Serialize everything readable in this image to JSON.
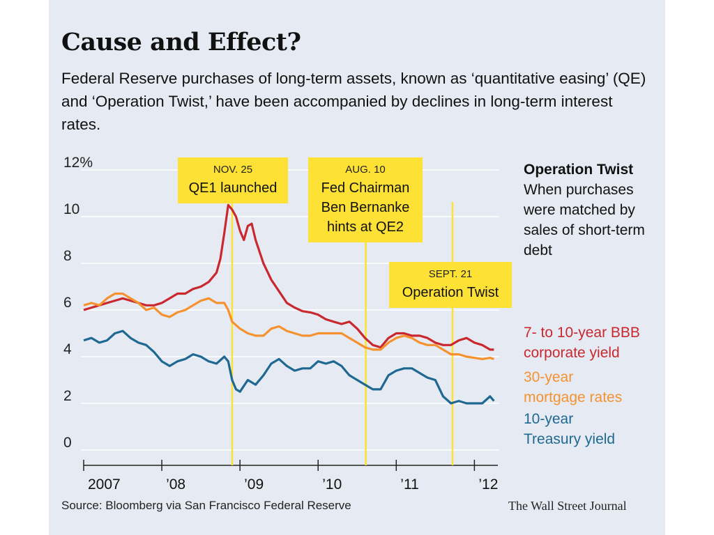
{
  "header": {
    "title": "Cause and Effect?",
    "subtitle": "Federal Reserve purchases of long-term assets, known as ‘quantitative easing’ (QE) and ‘Operation Twist,’ have been accompanied by declines in long-term interest rates."
  },
  "note": {
    "heading": "Operation Twist",
    "body": "When purchases were matched by sales of short-term debt"
  },
  "footer": {
    "source": "Source: Bloomberg via San Francisco Federal Reserve",
    "credit": "The Wall Street Journal"
  },
  "colors": {
    "background": "#e6ebf3",
    "bbb": "#c8282e",
    "mortgage": "#f5922f",
    "treasury": "#1f6891",
    "callout": "#fde134",
    "gridline": "#ffffff"
  },
  "chart_data": {
    "type": "line",
    "y_ticks": [
      {
        "value": 12,
        "label": "12%"
      },
      {
        "value": 10,
        "label": "10"
      },
      {
        "value": 8,
        "label": "8"
      },
      {
        "value": 6,
        "label": "6"
      },
      {
        "value": 4,
        "label": "4"
      },
      {
        "value": 2,
        "label": "2"
      },
      {
        "value": 0,
        "label": "0"
      }
    ],
    "ylim": [
      0,
      12
    ],
    "xlim": [
      2007.0,
      2012.3
    ],
    "x_ticks": [
      {
        "value": 2007,
        "label": "2007"
      },
      {
        "value": 2008,
        "label": "’08"
      },
      {
        "value": 2009,
        "label": "’09"
      },
      {
        "value": 2010,
        "label": "’10"
      },
      {
        "value": 2011,
        "label": "’11"
      },
      {
        "value": 2012,
        "label": "’12"
      }
    ],
    "grid": true,
    "events": [
      {
        "x": 2008.9,
        "date": "NOV. 25",
        "label": [
          "QE1 launched"
        ]
      },
      {
        "x": 2010.61,
        "date": "AUG. 10",
        "label": [
          "Fed Chairman",
          "Ben Bernanke",
          "hints at QE2"
        ]
      },
      {
        "x": 2011.72,
        "date": "SEPT. 21",
        "label": [
          "Operation Twist"
        ]
      }
    ],
    "series": [
      {
        "name": "7- to 10-year BBB corporate yield",
        "legend": [
          "7- to 10-year BBB",
          "corporate yield"
        ],
        "color": "#c8282e",
        "points": [
          [
            2007.0,
            6.0
          ],
          [
            2007.1,
            6.1
          ],
          [
            2007.2,
            6.2
          ],
          [
            2007.3,
            6.3
          ],
          [
            2007.4,
            6.4
          ],
          [
            2007.5,
            6.5
          ],
          [
            2007.6,
            6.4
          ],
          [
            2007.7,
            6.3
          ],
          [
            2007.8,
            6.2
          ],
          [
            2007.9,
            6.2
          ],
          [
            2008.0,
            6.3
          ],
          [
            2008.1,
            6.5
          ],
          [
            2008.2,
            6.7
          ],
          [
            2008.3,
            6.7
          ],
          [
            2008.4,
            6.9
          ],
          [
            2008.5,
            7.0
          ],
          [
            2008.6,
            7.2
          ],
          [
            2008.7,
            7.6
          ],
          [
            2008.75,
            8.2
          ],
          [
            2008.8,
            9.3
          ],
          [
            2008.85,
            10.5
          ],
          [
            2008.9,
            10.3
          ],
          [
            2008.95,
            10.0
          ],
          [
            2009.0,
            9.4
          ],
          [
            2009.05,
            9.0
          ],
          [
            2009.1,
            9.6
          ],
          [
            2009.15,
            9.7
          ],
          [
            2009.2,
            9.0
          ],
          [
            2009.3,
            8.0
          ],
          [
            2009.4,
            7.3
          ],
          [
            2009.5,
            6.8
          ],
          [
            2009.6,
            6.3
          ],
          [
            2009.7,
            6.1
          ],
          [
            2009.8,
            5.95
          ],
          [
            2009.9,
            5.9
          ],
          [
            2010.0,
            5.8
          ],
          [
            2010.1,
            5.6
          ],
          [
            2010.2,
            5.5
          ],
          [
            2010.3,
            5.4
          ],
          [
            2010.4,
            5.5
          ],
          [
            2010.5,
            5.2
          ],
          [
            2010.6,
            4.8
          ],
          [
            2010.7,
            4.5
          ],
          [
            2010.8,
            4.4
          ],
          [
            2010.9,
            4.8
          ],
          [
            2011.0,
            5.0
          ],
          [
            2011.1,
            5.0
          ],
          [
            2011.2,
            4.9
          ],
          [
            2011.3,
            4.9
          ],
          [
            2011.4,
            4.8
          ],
          [
            2011.5,
            4.6
          ],
          [
            2011.6,
            4.5
          ],
          [
            2011.7,
            4.5
          ],
          [
            2011.8,
            4.7
          ],
          [
            2011.9,
            4.8
          ],
          [
            2012.0,
            4.6
          ],
          [
            2012.1,
            4.5
          ],
          [
            2012.2,
            4.3
          ],
          [
            2012.25,
            4.3
          ]
        ]
      },
      {
        "name": "30-year mortgage rates",
        "legend": [
          "30-year",
          "mortgage rates"
        ],
        "color": "#f5922f",
        "points": [
          [
            2007.0,
            6.2
          ],
          [
            2007.1,
            6.3
          ],
          [
            2007.2,
            6.2
          ],
          [
            2007.3,
            6.5
          ],
          [
            2007.4,
            6.7
          ],
          [
            2007.5,
            6.7
          ],
          [
            2007.6,
            6.5
          ],
          [
            2007.7,
            6.3
          ],
          [
            2007.8,
            6.0
          ],
          [
            2007.9,
            6.1
          ],
          [
            2008.0,
            5.8
          ],
          [
            2008.1,
            5.7
          ],
          [
            2008.2,
            5.9
          ],
          [
            2008.3,
            6.0
          ],
          [
            2008.4,
            6.2
          ],
          [
            2008.5,
            6.4
          ],
          [
            2008.6,
            6.5
          ],
          [
            2008.7,
            6.3
          ],
          [
            2008.8,
            6.3
          ],
          [
            2008.85,
            6.0
          ],
          [
            2008.9,
            5.5
          ],
          [
            2009.0,
            5.2
          ],
          [
            2009.1,
            5.0
          ],
          [
            2009.2,
            4.9
          ],
          [
            2009.3,
            4.9
          ],
          [
            2009.4,
            5.2
          ],
          [
            2009.5,
            5.3
          ],
          [
            2009.6,
            5.1
          ],
          [
            2009.7,
            5.0
          ],
          [
            2009.8,
            4.9
          ],
          [
            2009.9,
            4.9
          ],
          [
            2010.0,
            5.0
          ],
          [
            2010.1,
            5.0
          ],
          [
            2010.2,
            5.0
          ],
          [
            2010.3,
            5.0
          ],
          [
            2010.4,
            4.8
          ],
          [
            2010.5,
            4.6
          ],
          [
            2010.6,
            4.4
          ],
          [
            2010.7,
            4.3
          ],
          [
            2010.8,
            4.3
          ],
          [
            2010.9,
            4.6
          ],
          [
            2011.0,
            4.8
          ],
          [
            2011.1,
            4.9
          ],
          [
            2011.2,
            4.8
          ],
          [
            2011.3,
            4.6
          ],
          [
            2011.4,
            4.5
          ],
          [
            2011.5,
            4.5
          ],
          [
            2011.6,
            4.3
          ],
          [
            2011.7,
            4.1
          ],
          [
            2011.8,
            4.1
          ],
          [
            2011.9,
            4.0
          ],
          [
            2012.0,
            3.95
          ],
          [
            2012.1,
            3.9
          ],
          [
            2012.2,
            3.95
          ],
          [
            2012.25,
            3.9
          ]
        ]
      },
      {
        "name": "10-year Treasury yield",
        "legend": [
          "10-year",
          "Treasury yield"
        ],
        "color": "#1f6891",
        "points": [
          [
            2007.0,
            4.7
          ],
          [
            2007.1,
            4.8
          ],
          [
            2007.2,
            4.6
          ],
          [
            2007.3,
            4.7
          ],
          [
            2007.4,
            5.0
          ],
          [
            2007.5,
            5.1
          ],
          [
            2007.6,
            4.8
          ],
          [
            2007.7,
            4.6
          ],
          [
            2007.8,
            4.5
          ],
          [
            2007.9,
            4.2
          ],
          [
            2008.0,
            3.8
          ],
          [
            2008.1,
            3.6
          ],
          [
            2008.2,
            3.8
          ],
          [
            2008.3,
            3.9
          ],
          [
            2008.4,
            4.1
          ],
          [
            2008.5,
            4.0
          ],
          [
            2008.6,
            3.8
          ],
          [
            2008.7,
            3.7
          ],
          [
            2008.8,
            4.0
          ],
          [
            2008.85,
            3.8
          ],
          [
            2008.9,
            3.0
          ],
          [
            2008.95,
            2.6
          ],
          [
            2009.0,
            2.5
          ],
          [
            2009.1,
            3.0
          ],
          [
            2009.2,
            2.8
          ],
          [
            2009.3,
            3.2
          ],
          [
            2009.4,
            3.7
          ],
          [
            2009.5,
            3.9
          ],
          [
            2009.6,
            3.6
          ],
          [
            2009.7,
            3.4
          ],
          [
            2009.8,
            3.5
          ],
          [
            2009.9,
            3.5
          ],
          [
            2010.0,
            3.8
          ],
          [
            2010.1,
            3.7
          ],
          [
            2010.2,
            3.8
          ],
          [
            2010.3,
            3.6
          ],
          [
            2010.4,
            3.2
          ],
          [
            2010.5,
            3.0
          ],
          [
            2010.6,
            2.8
          ],
          [
            2010.7,
            2.6
          ],
          [
            2010.8,
            2.6
          ],
          [
            2010.9,
            3.2
          ],
          [
            2011.0,
            3.4
          ],
          [
            2011.1,
            3.5
          ],
          [
            2011.2,
            3.5
          ],
          [
            2011.3,
            3.3
          ],
          [
            2011.4,
            3.1
          ],
          [
            2011.5,
            3.0
          ],
          [
            2011.6,
            2.3
          ],
          [
            2011.7,
            2.0
          ],
          [
            2011.8,
            2.1
          ],
          [
            2011.9,
            2.0
          ],
          [
            2012.0,
            2.0
          ],
          [
            2012.1,
            2.0
          ],
          [
            2012.2,
            2.3
          ],
          [
            2012.25,
            2.1
          ]
        ]
      }
    ]
  }
}
